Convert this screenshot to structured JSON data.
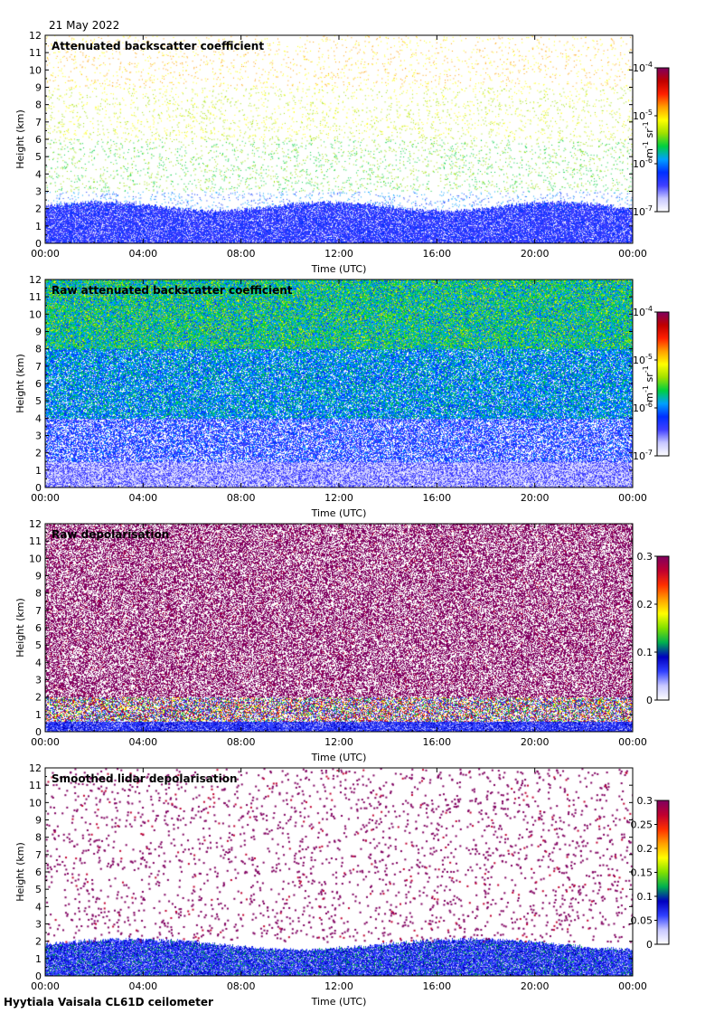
{
  "date": "21 May 2022",
  "footer": "Hyytiala Vaisala CL61D ceilometer",
  "colors": {
    "sequential": [
      "#ffffff",
      "#c8c8ff",
      "#4040ff",
      "#0030ff",
      "#00a0ff",
      "#00d040",
      "#a0e000",
      "#ffff00",
      "#ffa000",
      "#ff2000",
      "#c00000",
      "#800060"
    ],
    "depol": [
      "#ffffff",
      "#c8c8ff",
      "#3040ff",
      "#0000c0",
      "#00b050",
      "#80e000",
      "#ffff00",
      "#ffa000",
      "#ff3000",
      "#c00030",
      "#800060"
    ]
  },
  "chart_data": [
    {
      "type": "heatmap",
      "title": "Attenuated backscatter coefficient",
      "xlabel": "Time (UTC)",
      "ylabel": "Height (km)",
      "x_ticks": [
        "00:00",
        "04:00",
        "08:00",
        "12:00",
        "16:00",
        "20:00",
        "00:00"
      ],
      "y_ticks": [
        "0",
        "1",
        "2",
        "3",
        "4",
        "5",
        "6",
        "7",
        "8",
        "9",
        "10",
        "11",
        "12"
      ],
      "xlim": [
        0,
        24
      ],
      "ylim": [
        0,
        12
      ],
      "colorbar": {
        "scale": "log",
        "range": [
          1e-07,
          0.0001
        ],
        "ticks": [
          {
            "base": "10",
            "exp": "-7"
          },
          {
            "base": "10",
            "exp": "-6"
          },
          {
            "base": "10",
            "exp": "-5"
          },
          {
            "base": "10",
            "exp": "-4"
          }
        ],
        "label_main": "m",
        "label_exp1": "-1",
        "label_mid": " sr",
        "label_exp2": "-1"
      }
    },
    {
      "type": "heatmap",
      "title": "Raw attenuated backscatter coefficient",
      "xlabel": "Time (UTC)",
      "ylabel": "Height (km)",
      "x_ticks": [
        "00:00",
        "04:00",
        "08:00",
        "12:00",
        "16:00",
        "20:00",
        "00:00"
      ],
      "y_ticks": [
        "0",
        "1",
        "2",
        "3",
        "4",
        "5",
        "6",
        "7",
        "8",
        "9",
        "10",
        "11",
        "12"
      ],
      "xlim": [
        0,
        24
      ],
      "ylim": [
        0,
        12
      ],
      "colorbar": {
        "scale": "log",
        "range": [
          1e-07,
          0.0001
        ],
        "ticks": [
          {
            "base": "10",
            "exp": "-7"
          },
          {
            "base": "10",
            "exp": "-6"
          },
          {
            "base": "10",
            "exp": "-5"
          },
          {
            "base": "10",
            "exp": "-4"
          }
        ],
        "label_main": "m",
        "label_exp1": "-1",
        "label_mid": " sr",
        "label_exp2": "-1"
      }
    },
    {
      "type": "heatmap",
      "title": "Raw depolarisation",
      "xlabel": "Time (UTC)",
      "ylabel": "Height (km)",
      "x_ticks": [
        "00:00",
        "04:00",
        "08:00",
        "12:00",
        "16:00",
        "20:00",
        "00:00"
      ],
      "y_ticks": [
        "0",
        "1",
        "2",
        "3",
        "4",
        "5",
        "6",
        "7",
        "8",
        "9",
        "10",
        "11",
        "12"
      ],
      "xlim": [
        0,
        24
      ],
      "ylim": [
        0,
        12
      ],
      "colorbar": {
        "scale": "linear",
        "range": [
          0,
          0.3
        ],
        "ticks": [
          {
            "value": 0,
            "label": "0"
          },
          {
            "value": 0.1,
            "label": "0.1"
          },
          {
            "value": 0.2,
            "label": "0.2"
          },
          {
            "value": 0.3,
            "label": "0.3"
          }
        ]
      }
    },
    {
      "type": "heatmap",
      "title": "Smoothed lidar depolarisation",
      "xlabel": "Time (UTC)",
      "ylabel": "Height (km)",
      "x_ticks": [
        "00:00",
        "04:00",
        "08:00",
        "12:00",
        "16:00",
        "20:00",
        "00:00"
      ],
      "y_ticks": [
        "0",
        "1",
        "2",
        "3",
        "4",
        "5",
        "6",
        "7",
        "8",
        "9",
        "10",
        "11",
        "12"
      ],
      "xlim": [
        0,
        24
      ],
      "ylim": [
        0,
        12
      ],
      "colorbar": {
        "scale": "linear",
        "range": [
          0,
          0.3
        ],
        "ticks": [
          {
            "value": 0,
            "label": "0"
          },
          {
            "value": 0.05,
            "label": "0.05"
          },
          {
            "value": 0.1,
            "label": "0.1"
          },
          {
            "value": 0.15,
            "label": "0.15"
          },
          {
            "value": 0.2,
            "label": "0.2"
          },
          {
            "value": 0.25,
            "label": "0.25"
          },
          {
            "value": 0.3,
            "label": "0.3"
          }
        ]
      }
    }
  ]
}
